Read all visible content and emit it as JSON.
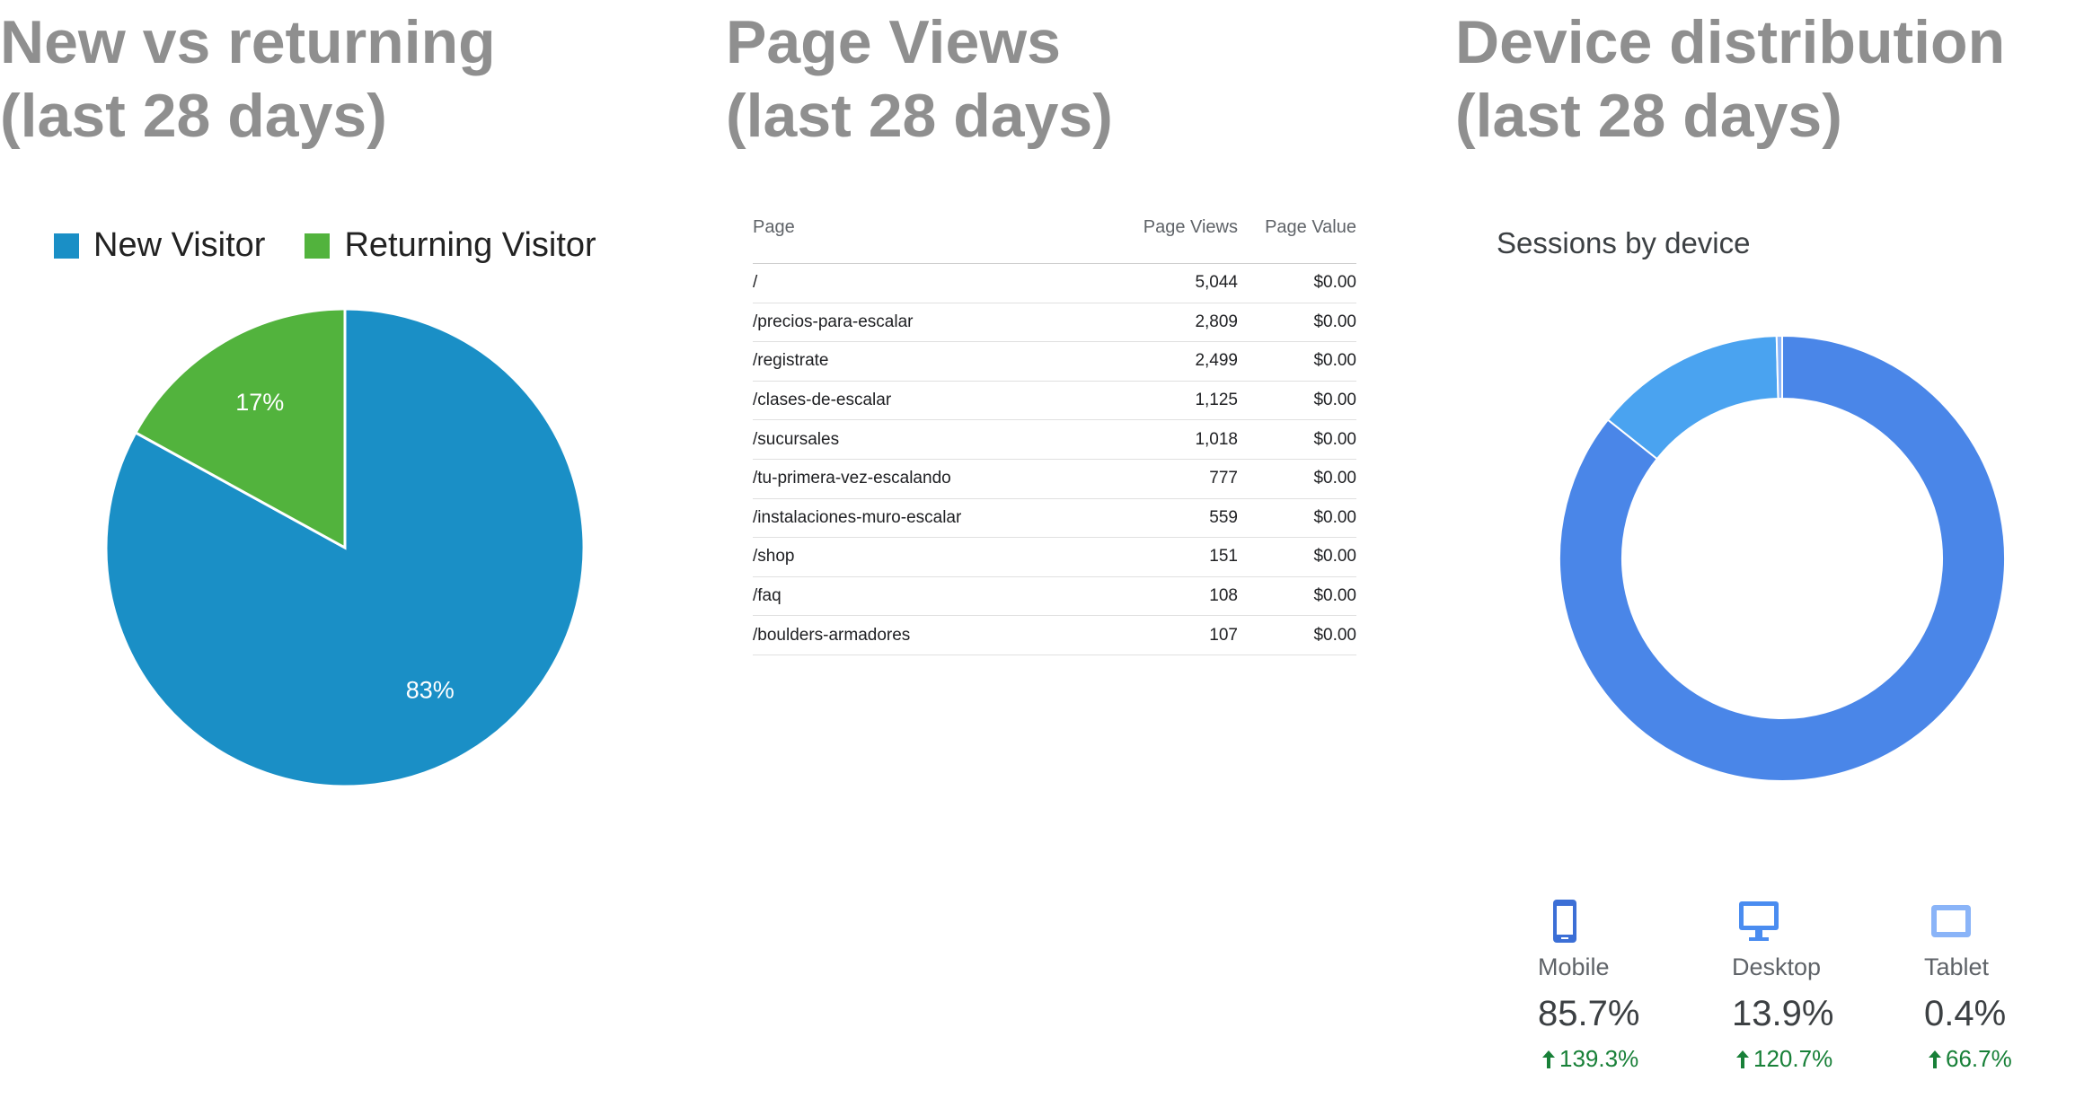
{
  "panels": {
    "visitors": {
      "title_line1": "New vs returning",
      "title_line2": "(last 28 days)"
    },
    "pageviews": {
      "title_line1": "Page Views",
      "title_line2": "(last 28 days)"
    },
    "devices": {
      "title_line1": "Device distribution",
      "title_line2": "(last 28 days)"
    }
  },
  "visitor_legend": [
    {
      "label": "New Visitor",
      "color": "#1a8fc6"
    },
    {
      "label": "Returning Visitor",
      "color": "#52b33d"
    }
  ],
  "page_table": {
    "headers": {
      "page": "Page",
      "views": "Page Views",
      "value": "Page Value"
    },
    "rows": [
      {
        "page": "/",
        "views": "5,044",
        "value": "$0.00"
      },
      {
        "page": "/precios-para-escalar",
        "views": "2,809",
        "value": "$0.00"
      },
      {
        "page": "/registrate",
        "views": "2,499",
        "value": "$0.00"
      },
      {
        "page": "/clases-de-escalar",
        "views": "1,125",
        "value": "$0.00"
      },
      {
        "page": "/sucursales",
        "views": "1,018",
        "value": "$0.00"
      },
      {
        "page": "/tu-primera-vez-escalando",
        "views": "777",
        "value": "$0.00"
      },
      {
        "page": "/instalaciones-muro-escalar",
        "views": "559",
        "value": "$0.00"
      },
      {
        "page": "/shop",
        "views": "151",
        "value": "$0.00"
      },
      {
        "page": "/faq",
        "views": "108",
        "value": "$0.00"
      },
      {
        "page": "/boulders-armadores",
        "views": "107",
        "value": "$0.00"
      }
    ]
  },
  "device_panel": {
    "subtitle": "Sessions by device",
    "devices": [
      {
        "label": "Mobile",
        "percent": "85.7%",
        "change": "139.3%",
        "icon": "smartphone-icon",
        "color": "#3c6fd6"
      },
      {
        "label": "Desktop",
        "percent": "13.9%",
        "change": "120.7%",
        "icon": "desktop-icon",
        "color": "#4a8cf0"
      },
      {
        "label": "Tablet",
        "percent": "0.4%",
        "change": "66.7%",
        "icon": "tablet-icon",
        "color": "#8ab4f8"
      }
    ]
  },
  "chart_data": [
    {
      "type": "pie",
      "title": "",
      "labels": [
        "New Visitor",
        "Returning Visitor"
      ],
      "values": [
        83,
        17
      ],
      "value_labels": [
        "83%",
        "17%"
      ],
      "colors": [
        "#1a8fc6",
        "#52b33d"
      ],
      "legend": "top"
    },
    {
      "type": "table",
      "columns": [
        "Page",
        "Page Views",
        "Page Value"
      ],
      "rows": [
        [
          "/",
          5044,
          0.0
        ],
        [
          "/precios-para-escalar",
          2809,
          0.0
        ],
        [
          "/registrate",
          2499,
          0.0
        ],
        [
          "/clases-de-escalar",
          1125,
          0.0
        ],
        [
          "/sucursales",
          1018,
          0.0
        ],
        [
          "/tu-primera-vez-escalando",
          777,
          0.0
        ],
        [
          "/instalaciones-muro-escalar",
          559,
          0.0
        ],
        [
          "/shop",
          151,
          0.0
        ],
        [
          "/faq",
          108,
          0.0
        ],
        [
          "/boulders-armadores",
          107,
          0.0
        ]
      ]
    },
    {
      "type": "pie",
      "subtype": "donut",
      "title": "Sessions by device",
      "labels": [
        "Mobile",
        "Desktop",
        "Tablet"
      ],
      "values": [
        85.7,
        13.9,
        0.4
      ],
      "changes": [
        139.3,
        120.7,
        66.7
      ],
      "colors": [
        "#4a86e8",
        "#4aa3f0",
        "#8ab4f8"
      ]
    }
  ]
}
